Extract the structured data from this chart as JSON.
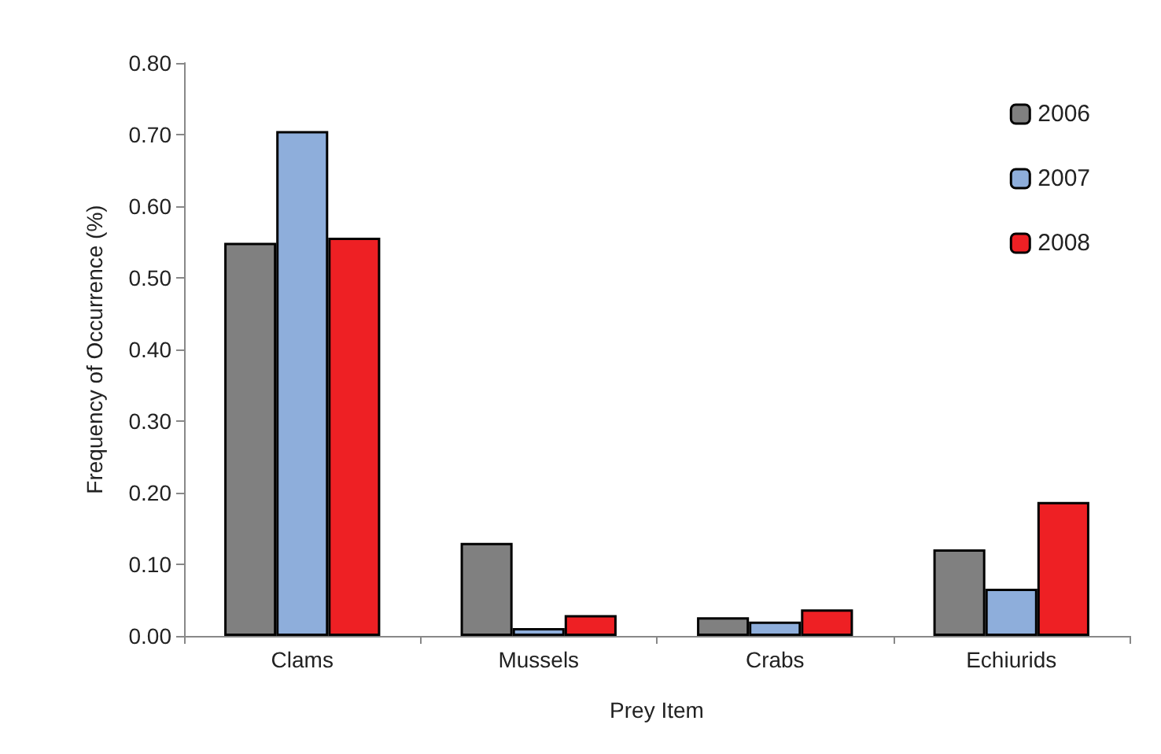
{
  "chart_data": {
    "type": "bar",
    "xlabel": "Prey Item",
    "ylabel": "Frequency of Occurrence (%)",
    "categories": [
      "Clams",
      "Mussels",
      "Crabs",
      "Echiurids"
    ],
    "series": [
      {
        "name": "2006",
        "color": "#808080",
        "values": [
          0.549,
          0.13,
          0.026,
          0.121
        ]
      },
      {
        "name": "2007",
        "color": "#8eaedb",
        "values": [
          0.705,
          0.011,
          0.02,
          0.066
        ]
      },
      {
        "name": "2008",
        "color": "#ee2024",
        "values": [
          0.556,
          0.029,
          0.037,
          0.187
        ]
      }
    ],
    "ylim": [
      0,
      0.8
    ],
    "yticks": [
      {
        "value": 0,
        "label": "0.00"
      },
      {
        "value": 0.1,
        "label": "0.10"
      },
      {
        "value": 0.2,
        "label": "0.20"
      },
      {
        "value": 0.3,
        "label": "0.30"
      },
      {
        "value": 0.4,
        "label": "0.40"
      },
      {
        "value": 0.5,
        "label": "0.50"
      },
      {
        "value": 0.6,
        "label": "0.60"
      },
      {
        "value": 0.7,
        "label": "0.70"
      },
      {
        "value": 0.8,
        "label": "0.80"
      }
    ],
    "grid": false,
    "legend": "top right"
  }
}
